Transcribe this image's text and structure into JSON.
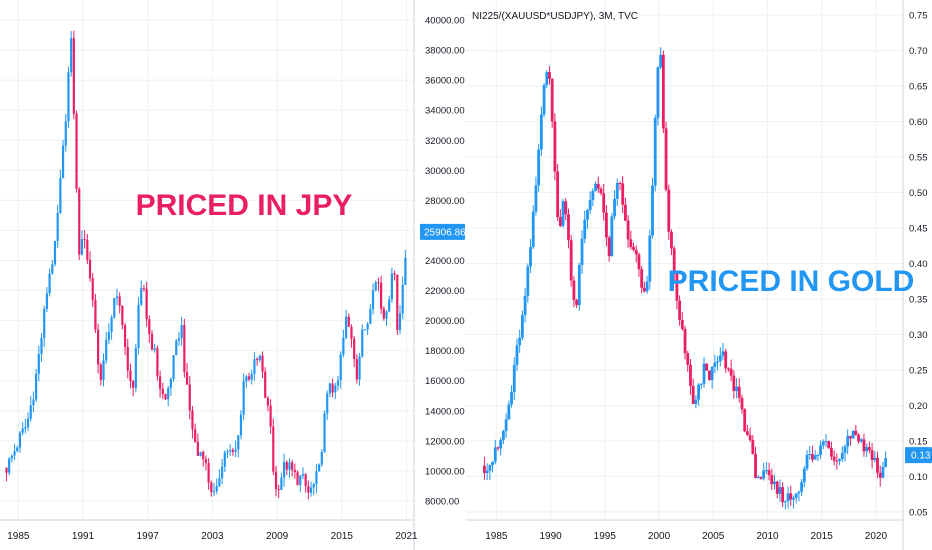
{
  "colors": {
    "up": "#2196f3",
    "down": "#e91e63",
    "grid": "#eef0f3",
    "axis": "#cfd3da",
    "text": "#131722"
  },
  "chart_data": [
    {
      "type": "candlestick",
      "title": "",
      "annotation": "PRICED IN JPY",
      "annotation_color": "#e91e63",
      "x_tick_labels": [
        "1985",
        "1991",
        "1997",
        "2003",
        "2009",
        "2015",
        "2021"
      ],
      "y_tick_labels": [
        "8000.00",
        "10000.00",
        "12000.00",
        "14000.00",
        "16000.00",
        "18000.00",
        "20000.00",
        "22000.00",
        "24000.00",
        "26000.00",
        "28000.00",
        "30000.00",
        "32000.00",
        "34000.00",
        "36000.00",
        "38000.00",
        "40000.00"
      ],
      "ylim": [
        6800,
        40800
      ],
      "xlim": [
        1983.3,
        2021.7
      ],
      "last_price": "25906.86",
      "points": [
        [
          1983.9,
          10200
        ],
        [
          1984.5,
          11100
        ],
        [
          1985.2,
          12300
        ],
        [
          1985.8,
          13100
        ],
        [
          1986.5,
          15600
        ],
        [
          1987.2,
          19200
        ],
        [
          1987.8,
          22900
        ],
        [
          1988.4,
          24800
        ],
        [
          1988.9,
          29100
        ],
        [
          1989.3,
          32600
        ],
        [
          1989.6,
          36000
        ],
        [
          1989.97,
          38900
        ],
        [
          1990.3,
          30000
        ],
        [
          1990.7,
          24000
        ],
        [
          1991.1,
          26000
        ],
        [
          1991.6,
          23000
        ],
        [
          1992.0,
          21000
        ],
        [
          1992.5,
          16000
        ],
        [
          1993.0,
          17500
        ],
        [
          1993.5,
          20000
        ],
        [
          1994.0,
          21500
        ],
        [
          1994.6,
          20500
        ],
        [
          1995.2,
          16000
        ],
        [
          1995.6,
          15500
        ],
        [
          1996.2,
          21000
        ],
        [
          1996.6,
          22500
        ],
        [
          1997.0,
          19500
        ],
        [
          1997.6,
          18000
        ],
        [
          1998.0,
          16000
        ],
        [
          1998.6,
          14500
        ],
        [
          1999.2,
          16500
        ],
        [
          1999.6,
          18000
        ],
        [
          2000.1,
          20000
        ],
        [
          2000.5,
          16000
        ],
        [
          2001.0,
          13500
        ],
        [
          2001.6,
          11000
        ],
        [
          2002.1,
          11500
        ],
        [
          2002.6,
          9500
        ],
        [
          2003.3,
          8000
        ],
        [
          2003.8,
          10500
        ],
        [
          2004.3,
          11500
        ],
        [
          2004.9,
          11000
        ],
        [
          2005.3,
          11500
        ],
        [
          2005.9,
          16000
        ],
        [
          2006.5,
          16500
        ],
        [
          2006.9,
          17000
        ],
        [
          2007.4,
          17500
        ],
        [
          2007.9,
          15000
        ],
        [
          2008.4,
          13000
        ],
        [
          2008.8,
          8500
        ],
        [
          2009.3,
          9500
        ],
        [
          2009.8,
          10500
        ],
        [
          2010.3,
          10000
        ],
        [
          2010.8,
          9500
        ],
        [
          2011.3,
          9500
        ],
        [
          2011.9,
          8500
        ],
        [
          2012.4,
          9000
        ],
        [
          2012.9,
          10000
        ],
        [
          2013.4,
          13500
        ],
        [
          2013.9,
          16000
        ],
        [
          2014.5,
          15000
        ],
        [
          2014.9,
          17500
        ],
        [
          2015.4,
          20000
        ],
        [
          2015.9,
          19000
        ],
        [
          2016.4,
          16500
        ],
        [
          2016.9,
          19000
        ],
        [
          2017.4,
          20000
        ],
        [
          2017.9,
          22500
        ],
        [
          2018.4,
          22500
        ],
        [
          2018.8,
          20000
        ],
        [
          2019.3,
          21500
        ],
        [
          2019.9,
          23500
        ],
        [
          2020.2,
          18900
        ],
        [
          2020.6,
          22000
        ],
        [
          2021.1,
          25906.86
        ]
      ]
    },
    {
      "type": "candlestick",
      "title": "NI225/(XAUUSD*USDJPY), 3M, TVC",
      "annotation": "PRICED IN GOLD",
      "annotation_color": "#2196f3",
      "x_tick_labels": [
        "1985",
        "1990",
        "1995",
        "2000",
        "2005",
        "2010",
        "2015",
        "2020"
      ],
      "y_tick_labels": [
        "0.05",
        "0.10",
        "0.15",
        "0.20",
        "0.25",
        "0.30",
        "0.35",
        "0.40",
        "0.45",
        "0.50",
        "0.55",
        "0.60",
        "0.65",
        "0.70",
        "0.75"
      ],
      "ylim": [
        0.04,
        0.76
      ],
      "xlim": [
        1982.2,
        2022.5
      ],
      "last_price": "0.13",
      "points": [
        [
          1983.9,
          0.115
        ],
        [
          1984.5,
          0.12
        ],
        [
          1985.2,
          0.14
        ],
        [
          1985.8,
          0.17
        ],
        [
          1986.5,
          0.23
        ],
        [
          1987.0,
          0.29
        ],
        [
          1987.5,
          0.33
        ],
        [
          1988.0,
          0.4
        ],
        [
          1988.5,
          0.48
        ],
        [
          1989.0,
          0.58
        ],
        [
          1989.4,
          0.66
        ],
        [
          1989.8,
          0.69
        ],
        [
          1990.3,
          0.55
        ],
        [
          1990.8,
          0.44
        ],
        [
          1991.3,
          0.5
        ],
        [
          1991.8,
          0.4
        ],
        [
          1992.3,
          0.33
        ],
        [
          1992.8,
          0.42
        ],
        [
          1993.3,
          0.47
        ],
        [
          1993.8,
          0.5
        ],
        [
          1994.3,
          0.52
        ],
        [
          1994.8,
          0.49
        ],
        [
          1995.3,
          0.4
        ],
        [
          1995.8,
          0.48
        ],
        [
          1996.3,
          0.52
        ],
        [
          1996.8,
          0.47
        ],
        [
          1997.3,
          0.43
        ],
        [
          1997.8,
          0.41
        ],
        [
          1998.3,
          0.38
        ],
        [
          1998.8,
          0.34
        ],
        [
          1999.3,
          0.47
        ],
        [
          1999.7,
          0.63
        ],
        [
          2000.1,
          0.71
        ],
        [
          2000.5,
          0.55
        ],
        [
          2000.9,
          0.44
        ],
        [
          2001.3,
          0.4
        ],
        [
          2001.8,
          0.32
        ],
        [
          2002.3,
          0.29
        ],
        [
          2002.8,
          0.23
        ],
        [
          2003.3,
          0.2
        ],
        [
          2003.8,
          0.23
        ],
        [
          2004.3,
          0.26
        ],
        [
          2004.8,
          0.24
        ],
        [
          2005.3,
          0.26
        ],
        [
          2005.8,
          0.27
        ],
        [
          2006.3,
          0.25
        ],
        [
          2006.8,
          0.23
        ],
        [
          2007.3,
          0.22
        ],
        [
          2007.8,
          0.18
        ],
        [
          2008.3,
          0.15
        ],
        [
          2008.8,
          0.11
        ],
        [
          2009.3,
          0.1
        ],
        [
          2009.8,
          0.1
        ],
        [
          2010.3,
          0.09
        ],
        [
          2010.8,
          0.08
        ],
        [
          2011.3,
          0.075
        ],
        [
          2011.8,
          0.068
        ],
        [
          2012.3,
          0.072
        ],
        [
          2012.8,
          0.08
        ],
        [
          2013.3,
          0.11
        ],
        [
          2013.8,
          0.13
        ],
        [
          2014.3,
          0.12
        ],
        [
          2014.8,
          0.14
        ],
        [
          2015.3,
          0.15
        ],
        [
          2015.8,
          0.14
        ],
        [
          2016.3,
          0.12
        ],
        [
          2016.8,
          0.14
        ],
        [
          2017.3,
          0.15
        ],
        [
          2017.8,
          0.165
        ],
        [
          2018.3,
          0.16
        ],
        [
          2018.8,
          0.14
        ],
        [
          2019.3,
          0.14
        ],
        [
          2019.8,
          0.13
        ],
        [
          2020.2,
          0.1
        ],
        [
          2020.7,
          0.11
        ],
        [
          2021.1,
          0.13
        ]
      ]
    }
  ]
}
